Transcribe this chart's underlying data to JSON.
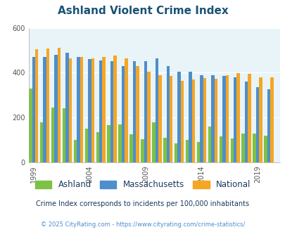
{
  "title": "Ashland Violent Crime Index",
  "title_color": "#1a5276",
  "years": [
    1999,
    2000,
    2001,
    2002,
    2003,
    2004,
    2005,
    2006,
    2007,
    2008,
    2009,
    2010,
    2011,
    2012,
    2013,
    2014,
    2015,
    2016,
    2017,
    2018,
    2019,
    2020
  ],
  "ashland": [
    330,
    180,
    245,
    240,
    100,
    150,
    135,
    165,
    170,
    125,
    105,
    180,
    110,
    85,
    100,
    90,
    160,
    115,
    108,
    130,
    128,
    120
  ],
  "massachusetts": [
    470,
    470,
    480,
    490,
    470,
    460,
    455,
    450,
    430,
    450,
    450,
    465,
    430,
    405,
    405,
    390,
    390,
    385,
    380,
    360,
    335,
    325
  ],
  "national": [
    505,
    507,
    510,
    465,
    470,
    463,
    470,
    475,
    465,
    430,
    405,
    390,
    385,
    365,
    370,
    375,
    373,
    390,
    398,
    395,
    380,
    378
  ],
  "ashland_color": "#7dc242",
  "massachusetts_color": "#4d8ecc",
  "national_color": "#f5a623",
  "bg_color": "#e8f4f8",
  "ylim": [
    0,
    600
  ],
  "yticks": [
    0,
    200,
    400,
    600
  ],
  "legend_labels": [
    "Ashland",
    "Massachusetts",
    "National"
  ],
  "footnote": "Crime Index corresponds to incidents per 100,000 inhabitants",
  "copyright": "© 2025 CityRating.com - https://www.cityrating.com/crime-statistics/",
  "footnote_color": "#1a3a5c",
  "copyright_color": "#4d8ecc",
  "xtick_labels": [
    "1999",
    "2004",
    "2009",
    "2014",
    "2019"
  ],
  "xtick_positions": [
    1999,
    2004,
    2009,
    2014,
    2019
  ]
}
